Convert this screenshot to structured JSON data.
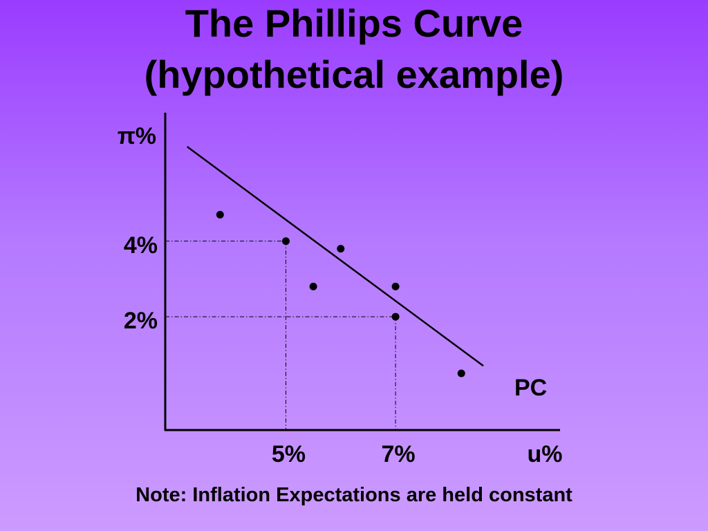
{
  "title": {
    "line1": "The Phillips Curve",
    "line2": "(hypothetical example)"
  },
  "note": "Note: Inflation Expectations are held constant",
  "chart_data": {
    "type": "scatter",
    "xlabel": "u%",
    "ylabel": "π%",
    "xlim": [
      2.8,
      10.0
    ],
    "ylim": [
      -1.0,
      7.4
    ],
    "x_ticks": [
      {
        "value": 5,
        "label": "5%"
      },
      {
        "value": 7,
        "label": "7%"
      }
    ],
    "y_ticks": [
      {
        "value": 4,
        "label": "4%"
      },
      {
        "value": 2,
        "label": "2%"
      }
    ],
    "grid": false,
    "points": [
      {
        "x": 3.8,
        "y": 4.7
      },
      {
        "x": 5.0,
        "y": 4.0
      },
      {
        "x": 6.0,
        "y": 3.8
      },
      {
        "x": 5.5,
        "y": 2.8
      },
      {
        "x": 7.0,
        "y": 2.8
      },
      {
        "x": 7.0,
        "y": 2.0
      },
      {
        "x": 8.2,
        "y": 0.5
      }
    ],
    "curve": {
      "label": "PC",
      "from": {
        "x": 3.2,
        "y": 6.5
      },
      "to": {
        "x": 8.6,
        "y": 0.7
      }
    },
    "reference_lines": [
      {
        "x": 5,
        "y": 4
      },
      {
        "x": 7,
        "y": 2
      }
    ]
  }
}
